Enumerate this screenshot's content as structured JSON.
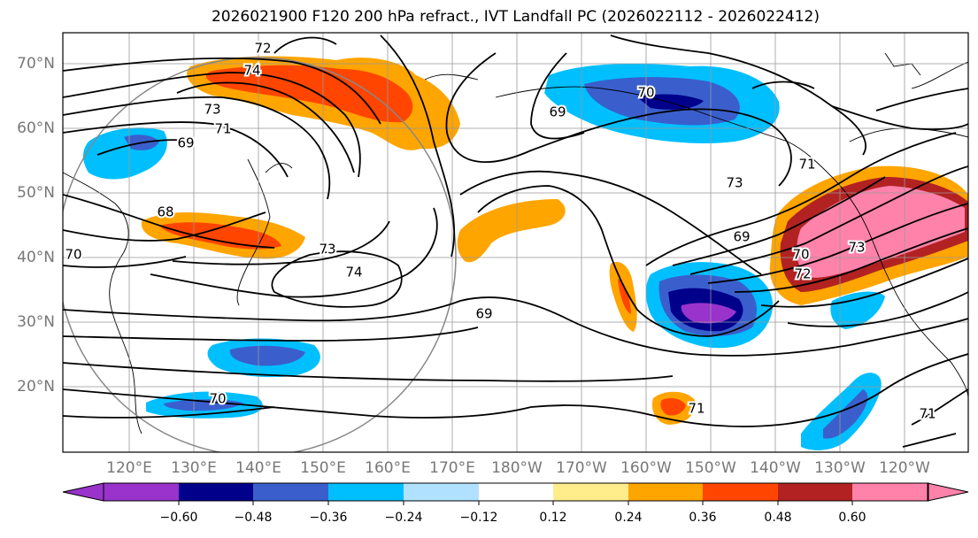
{
  "title": "2026021900 F120 200 hPa refract., IVT Landfall PC (2026022112 - 2026022412)",
  "map": {
    "lat_labels": [
      "70°N",
      "60°N",
      "50°N",
      "40°N",
      "30°N",
      "20°N"
    ],
    "lon_labels": [
      "120°E",
      "130°E",
      "140°E",
      "150°E",
      "160°E",
      "170°E",
      "180°W",
      "170°W",
      "160°W",
      "150°W",
      "140°W",
      "130°W",
      "120°W"
    ],
    "contour_labels": [
      "72",
      "74",
      "73",
      "71",
      "69",
      "68",
      "70",
      "73",
      "74",
      "69",
      "70",
      "69",
      "73",
      "71",
      "69",
      "70",
      "72",
      "73",
      "70",
      "71",
      "71"
    ],
    "colors": {
      "neg_060": "#9933cc",
      "neg_048": "#00008b",
      "neg_036": "#3a5fcd",
      "neg_024": "#00bfff",
      "neg_012": "#b0e2ff",
      "zero": "#ffffff",
      "pos_012": "#ffec8b",
      "pos_024": "#ffa500",
      "pos_036": "#ff4500",
      "pos_048": "#b22222",
      "pos_060": "#ff82ab"
    }
  },
  "colorbar": {
    "tick_labels": [
      "−0.60",
      "−0.48",
      "−0.36",
      "−0.24",
      "−0.12",
      "0.12",
      "0.24",
      "0.36",
      "0.48",
      "0.60"
    ]
  }
}
